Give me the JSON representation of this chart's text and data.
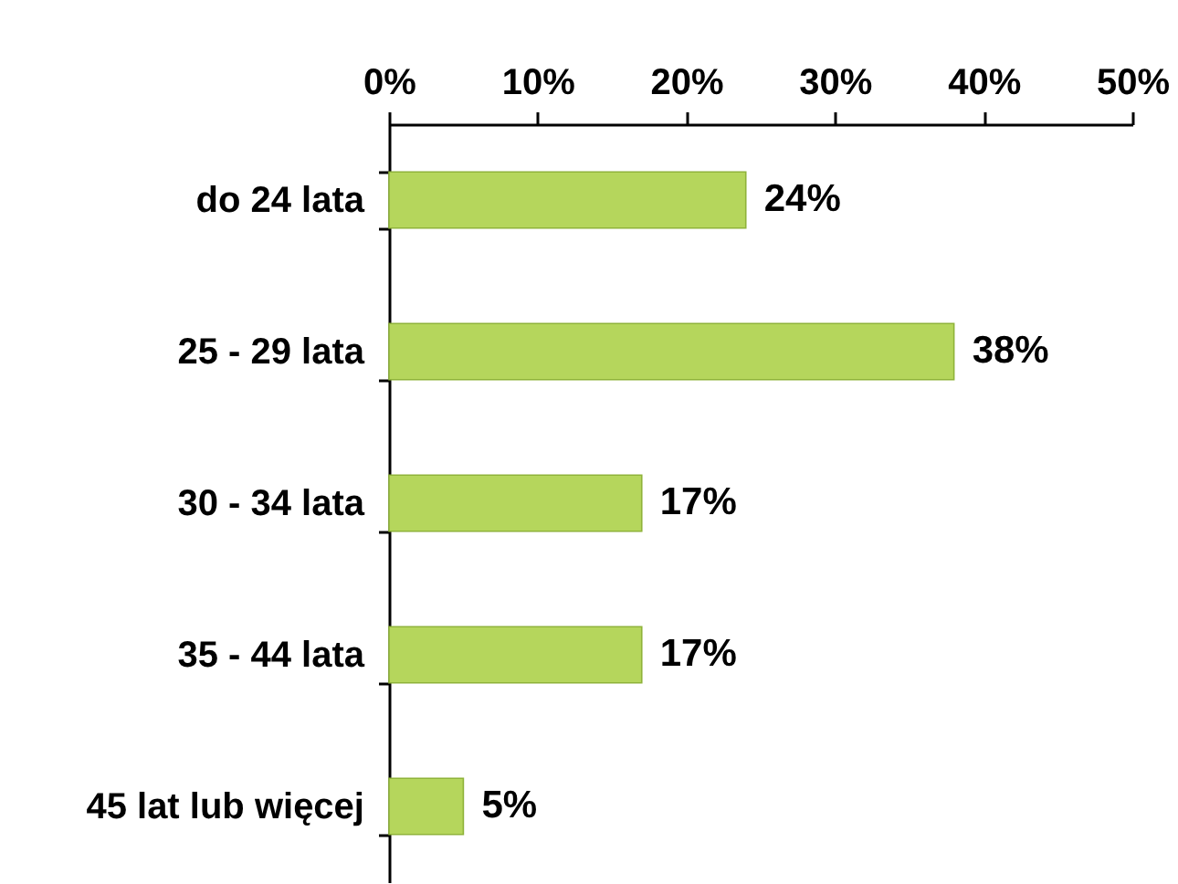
{
  "chart_data": {
    "type": "bar",
    "orientation": "horizontal",
    "categories": [
      "do 24 lata",
      "25 - 29 lata",
      "30 - 34 lata",
      "35 - 44 lata",
      "45 lat lub więcej"
    ],
    "values": [
      24,
      38,
      17,
      17,
      5
    ],
    "value_labels": [
      "24%",
      "38%",
      "17%",
      "17%",
      "5%"
    ],
    "color": "#b5d65c",
    "xlim": [
      0,
      50
    ],
    "xticks": [
      {
        "value": 0,
        "label": "0%"
      },
      {
        "value": 10,
        "label": "10%"
      },
      {
        "value": 20,
        "label": "20%"
      },
      {
        "value": 30,
        "label": "30%"
      },
      {
        "value": 40,
        "label": "40%"
      },
      {
        "value": 50,
        "label": "50%"
      }
    ],
    "grid": false
  }
}
